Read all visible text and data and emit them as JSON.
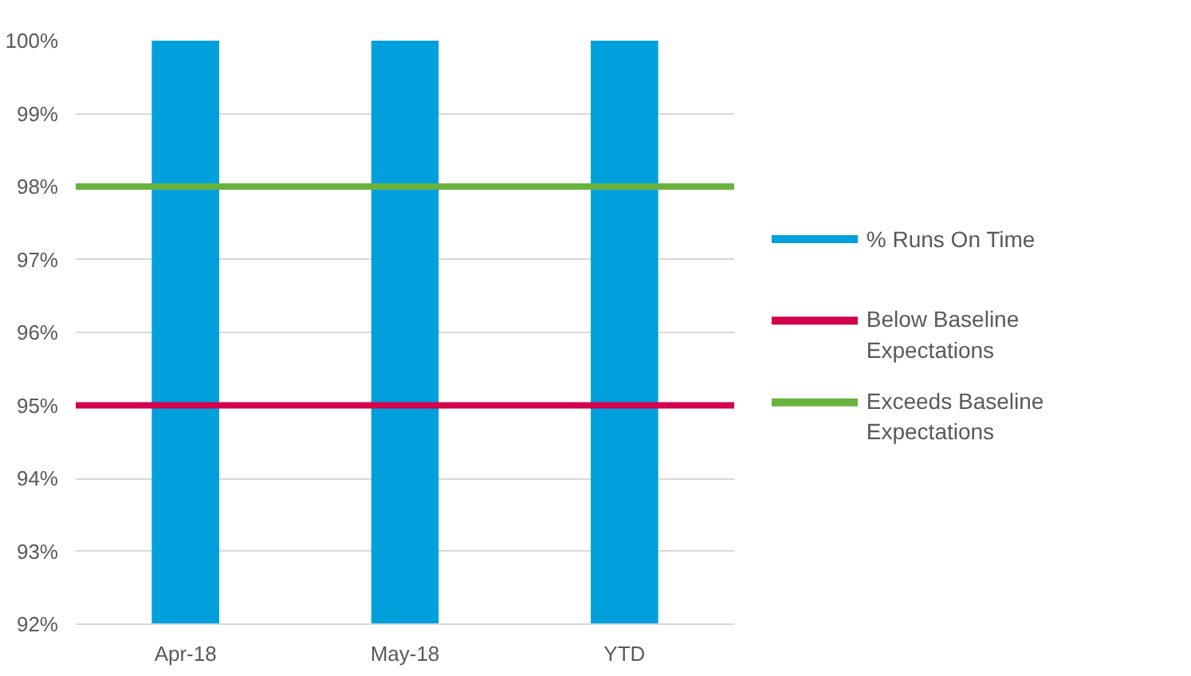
{
  "chart_data": {
    "type": "bar",
    "categories": [
      "Apr-18",
      "May-18",
      "YTD"
    ],
    "series": [
      {
        "name": "% Runs On Time",
        "color": "#00a0dc",
        "values": [
          100,
          100,
          100
        ]
      }
    ],
    "ref_lines": [
      {
        "axis": "y",
        "value": 95,
        "label": "Below Baseline Expectations",
        "color": "#d4004c"
      },
      {
        "axis": "y",
        "value": 98,
        "label": "Exceeds Baseline Expectations",
        "color": "#6ab23e"
      }
    ],
    "ylim": [
      92,
      100
    ],
    "yticks": [
      {
        "value": 92,
        "label": "92%"
      },
      {
        "value": 93,
        "label": "93%"
      },
      {
        "value": 94,
        "label": "94%"
      },
      {
        "value": 95,
        "label": "95%"
      },
      {
        "value": 96,
        "label": "96%"
      },
      {
        "value": 97,
        "label": "97%"
      },
      {
        "value": 98,
        "label": "98%"
      },
      {
        "value": 99,
        "label": "99%"
      },
      {
        "value": 100,
        "label": "100%"
      }
    ],
    "grid": "y",
    "legend": "right"
  }
}
